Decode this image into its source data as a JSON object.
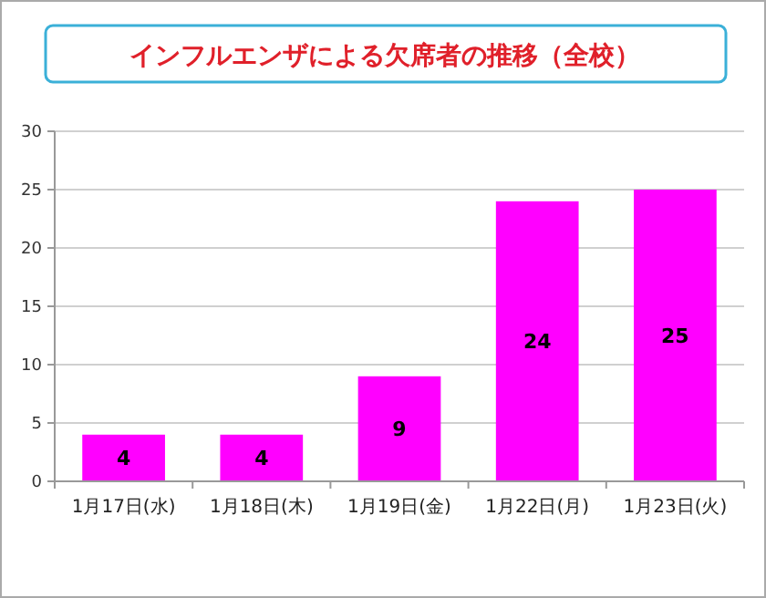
{
  "chart_data": {
    "type": "bar",
    "title": "インフルエンザによる欠席者の推移（全校）",
    "categories": [
      "1月17日(水)",
      "1月18日(木)",
      "1月19日(金)",
      "1月22日(月)",
      "1月23日(火)"
    ],
    "values": [
      4,
      4,
      9,
      24,
      25
    ],
    "color": "#ff00ff",
    "ylim": [
      0,
      30
    ],
    "yticks": [
      0,
      5,
      10,
      15,
      20,
      25,
      30
    ],
    "grid": "y",
    "data_labels": true
  }
}
